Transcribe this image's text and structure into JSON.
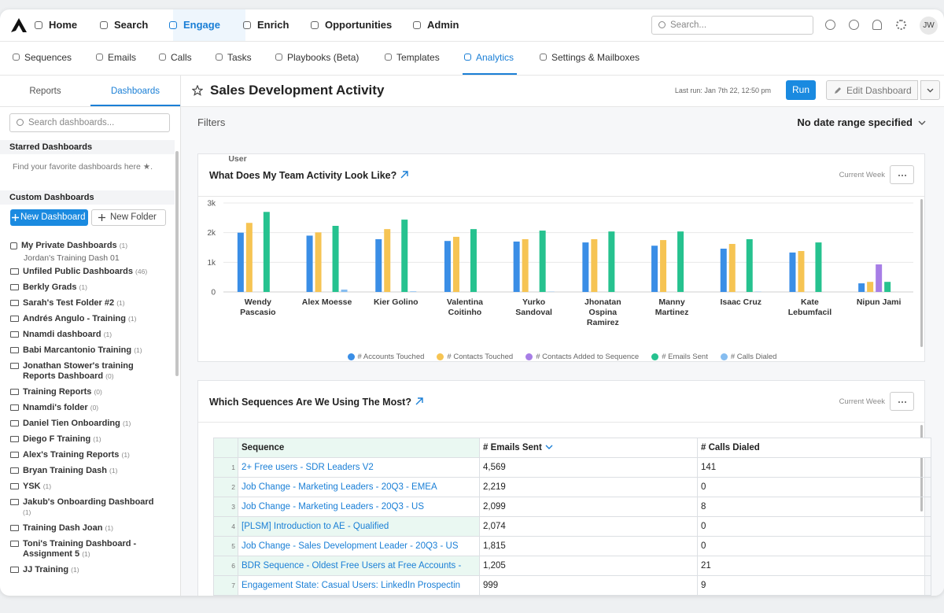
{
  "nav": {
    "items": [
      "Home",
      "Search",
      "Engage",
      "Enrich",
      "Opportunities",
      "Admin"
    ],
    "search_placeholder": "Search...",
    "avatar": "JW"
  },
  "subnav": [
    "Sequences",
    "Emails",
    "Calls",
    "Tasks",
    "Playbooks (Beta)",
    "Templates",
    "Analytics",
    "Settings & Mailboxes"
  ],
  "sidebar": {
    "tabs": [
      "Reports",
      "Dashboards"
    ],
    "search_placeholder": "Search dashboards...",
    "starred_heading": "Starred Dashboards",
    "starred_hint": "Find your favorite dashboards here ★.",
    "custom_heading": "Custom Dashboards",
    "new_dashboard": "New Dashboard",
    "new_folder": "New Folder",
    "folders": [
      {
        "name": "My Private Dashboards",
        "count": "(1)",
        "children": [
          "Jordan's Training Dash 01"
        ]
      },
      {
        "name": "Unfiled Public Dashboards",
        "count": "(46)"
      },
      {
        "name": "Berkly Grads",
        "count": "(1)"
      },
      {
        "name": "Sarah's Test Folder #2",
        "count": "(1)"
      },
      {
        "name": "Andrés Angulo - Training",
        "count": "(1)"
      },
      {
        "name": "Nnamdi dashboard",
        "count": "(1)"
      },
      {
        "name": "Babi Marcantonio Training",
        "count": "(1)"
      },
      {
        "name": "Jonathan Stower's training Reports Dashboard",
        "count": "(0)"
      },
      {
        "name": "Training Reports",
        "count": "(0)"
      },
      {
        "name": "Nnamdi's folder",
        "count": "(0)"
      },
      {
        "name": "Daniel Tien Onboarding",
        "count": "(1)"
      },
      {
        "name": "Diego F Training",
        "count": "(1)"
      },
      {
        "name": "Alex's Training Reports",
        "count": "(1)"
      },
      {
        "name": "Bryan Training Dash",
        "count": "(1)"
      },
      {
        "name": "YSK",
        "count": "(1)"
      },
      {
        "name": "Jakub's Onboarding Dashboard",
        "count": "(1)"
      },
      {
        "name": "Training Dash Joan",
        "count": "(1)"
      },
      {
        "name": "Toni's Training Dashboard - Assignment 5",
        "count": "(1)"
      },
      {
        "name": "JJ Training",
        "count": "(1)"
      }
    ]
  },
  "header": {
    "title": "Sales Development Activity",
    "last_run": "Last run: Jan 7th 22, 12:50 pm",
    "run": "Run",
    "edit": "Edit Dashboard"
  },
  "filters": {
    "label": "Filters",
    "date_range": "No date range specified"
  },
  "widgets": [
    {
      "title": "What Does My Team Activity Look Like?",
      "period": "Current Week"
    },
    {
      "title": "Which Sequences Are We Using The Most?",
      "period": "Current Week"
    }
  ],
  "chart_data": {
    "type": "bar",
    "x_label": "User",
    "categories": [
      "Wendy Pascasio",
      "Alex Moesse",
      "Kier Golino",
      "Valentina Coitinho",
      "Yurko Sandoval",
      "Jhonatan Ospina Ramirez",
      "Manny Martinez",
      "Isaac Cruz",
      "Kate Lebumfacil",
      "Nipun Jami"
    ],
    "series": [
      {
        "name": "# Accounts Touched",
        "color": "#3a8ee6",
        "values": [
          2000,
          1900,
          1780,
          1720,
          1700,
          1670,
          1560,
          1460,
          1330,
          290
        ]
      },
      {
        "name": "# Contacts Touched",
        "color": "#f6c453",
        "values": [
          2330,
          2010,
          2120,
          1860,
          1780,
          1780,
          1750,
          1620,
          1380,
          340
        ]
      },
      {
        "name": "# Contacts Added to Sequence",
        "color": "#a77ee6",
        "values": [
          0,
          0,
          0,
          0,
          0,
          0,
          0,
          0,
          0,
          930
        ]
      },
      {
        "name": "# Emails Sent",
        "color": "#26c28f",
        "values": [
          2700,
          2230,
          2440,
          2120,
          2070,
          2040,
          2040,
          1780,
          1670,
          340
        ]
      },
      {
        "name": "# Calls Dialed",
        "color": "#86bdf0",
        "values": [
          0,
          80,
          20,
          0,
          10,
          0,
          0,
          10,
          0,
          0
        ]
      }
    ],
    "ylim": [
      0,
      3000
    ],
    "yticks": [
      0,
      {
        "value": 1000,
        "label": "1k"
      },
      {
        "value": 2000,
        "label": "2k"
      },
      {
        "value": 3000,
        "label": "3k"
      }
    ],
    "grid": true
  },
  "table": {
    "columns": [
      "Sequence",
      "# Emails Sent",
      "# Calls Dialed"
    ],
    "rows": [
      [
        "1",
        "2+ Free users - SDR Leaders V2",
        "4,569",
        "141"
      ],
      [
        "2",
        "Job Change - Marketing Leaders - 20Q3 - EMEA",
        "2,219",
        "0"
      ],
      [
        "3",
        "Job Change - Marketing Leaders - 20Q3 - US",
        "2,099",
        "8"
      ],
      [
        "4",
        "[PLSM] Introduction to AE - Qualified",
        "2,074",
        "0"
      ],
      [
        "5",
        "Job Change - Sales Development Leader - 20Q3 - US",
        "1,815",
        "0"
      ],
      [
        "6",
        "BDR Sequence - Oldest Free Users at Free Accounts -",
        "1,205",
        "21"
      ],
      [
        "7",
        "Engagement State: Casual Users: LinkedIn Prospectin",
        "999",
        "9"
      ]
    ]
  }
}
